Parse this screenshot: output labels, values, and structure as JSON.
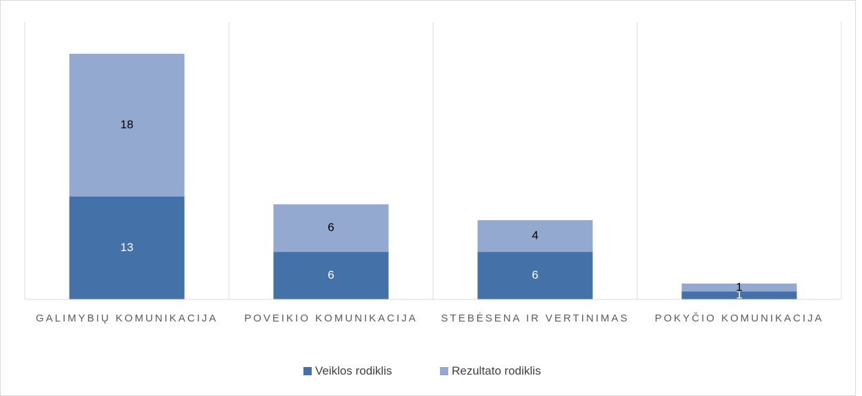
{
  "chart_data": {
    "type": "stacked_bar",
    "categories": [
      "GALIMYBIŲ KOMUNIKACIJA",
      "POVEIKIO KOMUNIKACIJA",
      "STEBĖSENA IR VERTINIMAS",
      "POKYČIO KOMUNIKACIJA"
    ],
    "series": [
      {
        "name": "Veiklos rodiklis",
        "color": "#4472a8",
        "values": [
          13,
          6,
          6,
          1
        ]
      },
      {
        "name": "Rezultato rodiklis",
        "color": "#94a9d0",
        "values": [
          18,
          6,
          4,
          1
        ]
      }
    ],
    "ylim": [
      0,
      35
    ],
    "legend": "bottom"
  }
}
